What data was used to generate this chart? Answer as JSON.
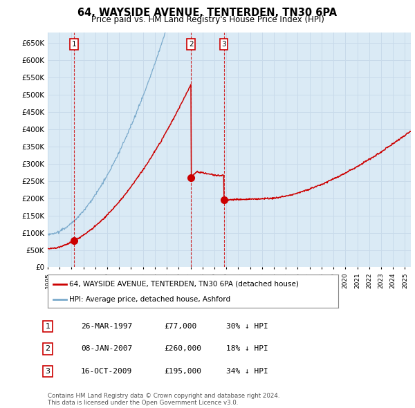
{
  "title": "64, WAYSIDE AVENUE, TENTERDEN, TN30 6PA",
  "subtitle": "Price paid vs. HM Land Registry's House Price Index (HPI)",
  "ylim": [
    0,
    680000
  ],
  "yticks": [
    0,
    50000,
    100000,
    150000,
    200000,
    250000,
    300000,
    350000,
    400000,
    450000,
    500000,
    550000,
    600000,
    650000
  ],
  "sale_dates_num": [
    1997.23,
    2007.03,
    2009.79
  ],
  "sale_prices": [
    77000,
    260000,
    195000
  ],
  "sale_labels": [
    "1",
    "2",
    "3"
  ],
  "sale_color": "#cc0000",
  "hpi_color": "#7aaacc",
  "red_line_color": "#cc0000",
  "grid_color": "#c8daea",
  "plot_bg_color": "#daeaf5",
  "legend_label_red": "64, WAYSIDE AVENUE, TENTERDEN, TN30 6PA (detached house)",
  "legend_label_blue": "HPI: Average price, detached house, Ashford",
  "table_rows": [
    [
      "1",
      "26-MAR-1997",
      "£77,000",
      "30% ↓ HPI"
    ],
    [
      "2",
      "08-JAN-2007",
      "£260,000",
      "18% ↓ HPI"
    ],
    [
      "3",
      "16-OCT-2009",
      "£195,000",
      "34% ↓ HPI"
    ]
  ],
  "footer_text": "Contains HM Land Registry data © Crown copyright and database right 2024.\nThis data is licensed under the Open Government Licence v3.0.",
  "xmin": 1995.0,
  "xmax": 2025.5
}
